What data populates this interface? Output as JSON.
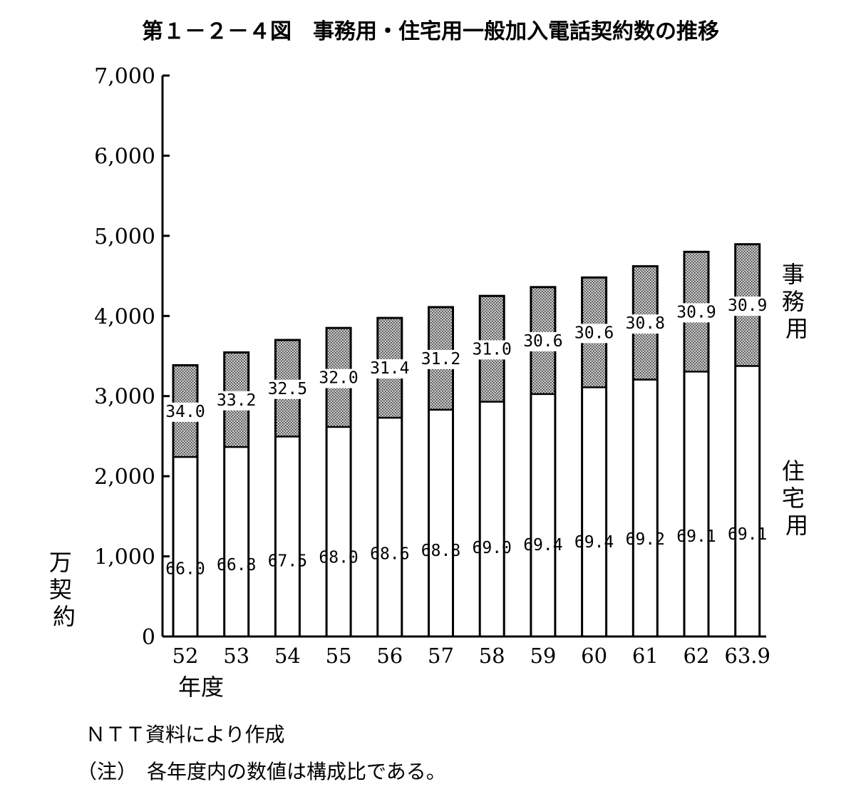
{
  "title": "第１－２－４図　事務用・住宅用一般加入電話契約数の推移",
  "colors": {
    "business_fill": "#bdbdbd",
    "residential_fill": "#ffffff",
    "stroke": "#000000"
  },
  "chart_data": {
    "type": "bar",
    "stacked": true,
    "categories": [
      "52",
      "53",
      "54",
      "55",
      "56",
      "57",
      "58",
      "59",
      "60",
      "61",
      "62",
      "63.9"
    ],
    "series": [
      {
        "name": "住宅用",
        "values": [
          2240,
          2365,
          2495,
          2615,
          2730,
          2830,
          2930,
          3025,
          3110,
          3205,
          3305,
          3375
        ],
        "labels": [
          "66.0",
          "66.8",
          "67.5",
          "68.0",
          "68.6",
          "68.8",
          "69.0",
          "69.4",
          "69.4",
          "69.2",
          "69.1",
          "69.1"
        ]
      },
      {
        "name": "事務用",
        "values": [
          1145,
          1180,
          1205,
          1235,
          1245,
          1280,
          1320,
          1335,
          1370,
          1415,
          1495,
          1520
        ],
        "labels": [
          "34.0",
          "33.2",
          "32.5",
          "32.0",
          "31.4",
          "31.2",
          "31.0",
          "30.6",
          "30.6",
          "30.8",
          "30.9",
          "30.9"
        ]
      }
    ],
    "totals": [
      3385,
      3545,
      3700,
      3850,
      3975,
      4110,
      4250,
      4360,
      4480,
      4620,
      4800,
      4895
    ],
    "yticks": [
      "0",
      "1,000",
      "2,000",
      "3,000",
      "4,000",
      "5,000",
      "6,000",
      "7,000"
    ],
    "ylim": [
      0,
      7000
    ],
    "ylabel": "万契約",
    "xlabel": "年度",
    "grid": false
  },
  "notes": {
    "source": "ＮＴＴ資料により作成",
    "note": "（注）　各年度内の数値は構成比である。"
  }
}
